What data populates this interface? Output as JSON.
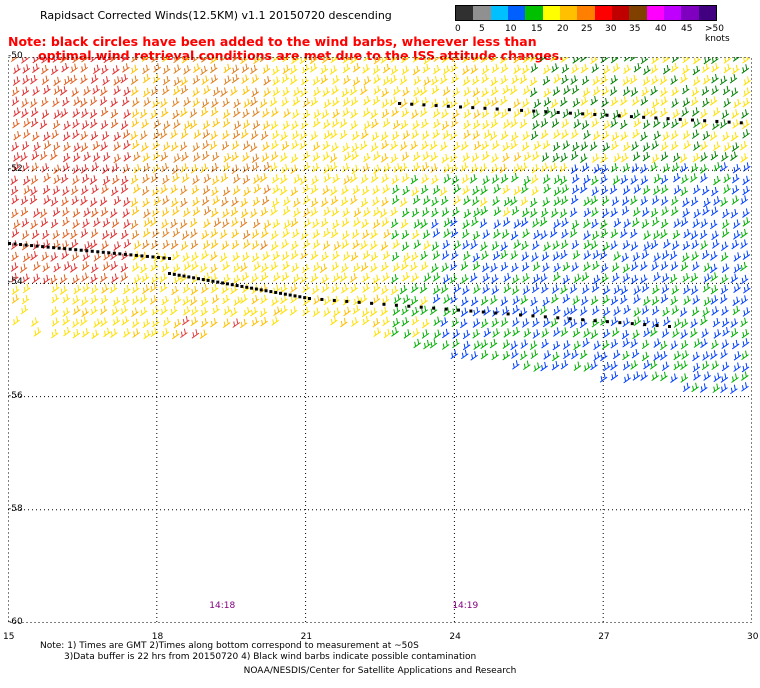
{
  "title": "Rapidsact Corrected Winds(12.5KM) v1.1 20150720 descending",
  "note": {
    "line1": "Note: black circles have been added to the wind barbs, wherever less than",
    "line2": "optimal wind retrieval conditions are met due to the ISS attitude changes."
  },
  "legend": {
    "labels": [
      "0",
      "5",
      "10",
      "15",
      "20",
      "25",
      "30",
      "35",
      "40",
      "45",
      ">50 knots"
    ],
    "colors": [
      "#303030",
      "#909090",
      "#00c0ff",
      "#0060ff",
      "#00c000",
      "#ffff00",
      "#ffc000",
      "#ff8000",
      "#ff0000",
      "#c00000",
      "#804000",
      "#ff00ff",
      "#c000ff",
      "#8000c0",
      "#400080"
    ]
  },
  "map": {
    "lon_ticks": [
      "15",
      "18",
      "21",
      "24",
      "27",
      "30"
    ],
    "lat_ticks": [
      "-50",
      "-52",
      "-54",
      "-56",
      "-58",
      "-60"
    ],
    "lon_range": [
      15,
      30
    ],
    "lat_range": [
      -60,
      -50
    ],
    "times": [
      {
        "label": "14:18",
        "lon": 19.3
      },
      {
        "label": "14:19",
        "lon": 24.2
      }
    ],
    "grid": "dotted"
  },
  "footnote": {
    "line1": "Note: 1) Times are GMT 2)Times along bottom correspond to measurement at ~50S",
    "line2": "3)Data buffer is 22 hrs from 20150720 4) Black wind barbs indicate possible contamination"
  },
  "credit": "NOAA/NESDIS/Center for Satellite Applications and Research"
}
